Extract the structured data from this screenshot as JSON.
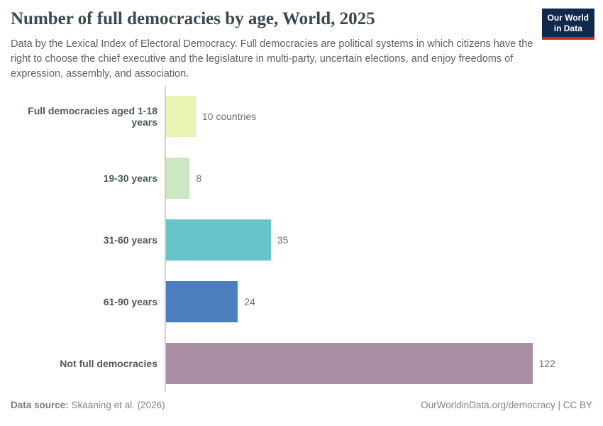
{
  "header": {
    "title": "Number of full democracies by age, World, 2025",
    "subtitle": "Data by the Lexical Index of Electoral Democracy. Full democracies are political systems in which citizens have the right to choose the chief executive and the legislature in multi-party, uncertain elections, and enjoy freedoms of expression, assembly, and association.",
    "logo": {
      "line1": "Our World",
      "line2": "in Data",
      "bg_color": "#12294e",
      "accent_color": "#d2281e"
    }
  },
  "chart_data": {
    "type": "bar",
    "orientation": "horizontal",
    "title": "Number of full democracies by age, World, 2025",
    "categories": [
      "Full democracies aged 1-18 years",
      "19-30 years",
      "31-60 years",
      "61-90 years",
      "Not full democracies"
    ],
    "values": [
      10,
      8,
      35,
      24,
      122
    ],
    "value_labels": [
      "10 countries",
      "8",
      "35",
      "24",
      "122"
    ],
    "bar_colors": [
      "#eaf3b4",
      "#cde7c2",
      "#66c4c9",
      "#4d7ebd",
      "#aa8ea4"
    ],
    "xlim": [
      0,
      122
    ],
    "axis_color": "#cccccc",
    "grid": false,
    "legend": "none"
  },
  "footer": {
    "source_label": "Data source:",
    "source_value": " Skaaning et al. (2026)",
    "credit": "OurWorldinData.org/democracy | CC BY"
  }
}
